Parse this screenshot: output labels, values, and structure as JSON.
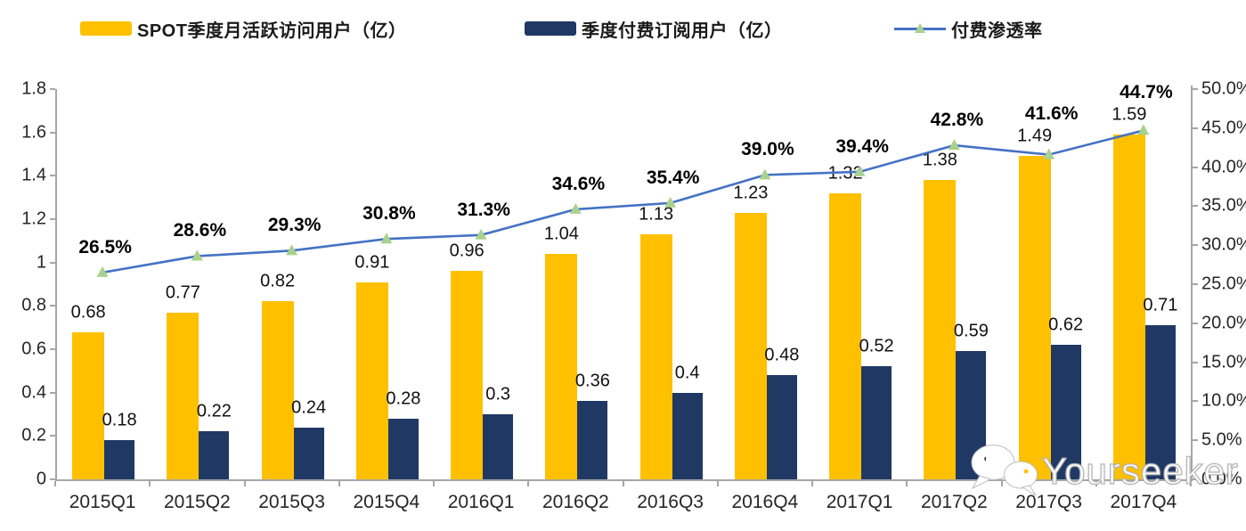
{
  "legend": {
    "mau_label": "SPOT季度月活跃访问用户（亿）",
    "subs_label": "季度付费订阅用户（亿）",
    "penetration_label": "付费渗透率"
  },
  "colors": {
    "mau_bar": "#FFC000",
    "subs_bar": "#1F3864",
    "line": "#4472C4",
    "marker": "#A9D18E",
    "axis": "#A6A6A6"
  },
  "watermark": {
    "text": "Yourseeker",
    "icon": "wechat-chat-bubbles-icon"
  },
  "chart_data": {
    "type": "bar",
    "subtype": "combo-bar-line",
    "title": "",
    "xlabel": "",
    "ylabel_left": "",
    "ylabel_right": "",
    "categories": [
      "2015Q1",
      "2015Q2",
      "2015Q3",
      "2015Q4",
      "2016Q1",
      "2016Q2",
      "2016Q3",
      "2016Q4",
      "2017Q1",
      "2017Q2",
      "2017Q3",
      "2017Q4"
    ],
    "series": [
      {
        "name": "SPOT季度月活跃访问用户（亿）",
        "type": "bar",
        "axis": "left",
        "color": "#FFC000",
        "values": [
          0.68,
          0.77,
          0.82,
          0.91,
          0.96,
          1.04,
          1.13,
          1.23,
          1.32,
          1.38,
          1.49,
          1.59
        ],
        "labels": [
          "0.68",
          "0.77",
          "0.82",
          "0.91",
          "0.96",
          "1.04",
          "1.13",
          "1.23",
          "1.32",
          "1.38",
          "1.49",
          "1.59"
        ]
      },
      {
        "name": "季度付费订阅用户（亿）",
        "type": "bar",
        "axis": "left",
        "color": "#1F3864",
        "values": [
          0.18,
          0.22,
          0.24,
          0.28,
          0.3,
          0.36,
          0.4,
          0.48,
          0.52,
          0.59,
          0.62,
          0.71
        ],
        "labels": [
          "0.18",
          "0.22",
          "0.24",
          "0.28",
          "0.3",
          "0.36",
          "0.4",
          "0.48",
          "0.52",
          "0.59",
          "0.62",
          "0.71"
        ]
      },
      {
        "name": "付费渗透率",
        "type": "line",
        "axis": "right",
        "color": "#4472C4",
        "marker": "triangle",
        "values": [
          26.5,
          28.6,
          29.3,
          30.8,
          31.3,
          34.6,
          35.4,
          39.0,
          39.4,
          42.8,
          41.6,
          44.7
        ],
        "labels": [
          "26.5%",
          "28.6%",
          "29.3%",
          "30.8%",
          "31.3%",
          "34.6%",
          "35.4%",
          "39.0%",
          "39.4%",
          "42.8%",
          "41.6%",
          "44.7%"
        ]
      }
    ],
    "left_axis": {
      "min": 0,
      "max": 1.8,
      "tick_labels": [
        "0",
        "0.2",
        "0.4",
        "0.6",
        "0.8",
        "1",
        "1.2",
        "1.4",
        "1.6",
        "1.8"
      ]
    },
    "right_axis": {
      "min": 0,
      "max": 50,
      "tick_labels": [
        "0.0%",
        "5.0%",
        "10.0%",
        "15.0%",
        "20.0%",
        "25.0%",
        "30.0%",
        "35.0%",
        "40.0%",
        "45.0%",
        "50.0%"
      ]
    },
    "grid": false,
    "legend_position": "top"
  }
}
